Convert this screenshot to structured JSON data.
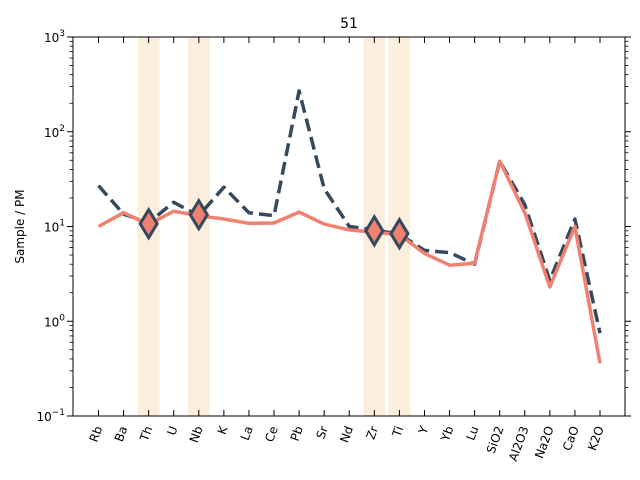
{
  "chart_data": {
    "type": "line",
    "title": "51",
    "xlabel": "",
    "ylabel": "Sample / PM",
    "yscale": "log",
    "ylim": [
      0.1,
      1000
    ],
    "yticks": [
      {
        "value": 0.1,
        "base": "10",
        "exp": "−1"
      },
      {
        "value": 1,
        "base": "10",
        "exp": "0"
      },
      {
        "value": 10,
        "base": "10",
        "exp": "1"
      },
      {
        "value": 100,
        "base": "10",
        "exp": "2"
      },
      {
        "value": 1000,
        "base": "10",
        "exp": "3"
      }
    ],
    "categories": [
      "Rb",
      "Ba",
      "Th",
      "U",
      "Nb",
      "K",
      "La",
      "Ce",
      "Pb",
      "Sr",
      "Nd",
      "Zr",
      "Ti",
      "Y",
      "Yb",
      "Lu",
      "SiO2",
      "Al2O3",
      "Na2O",
      "CaO",
      "K2O"
    ],
    "highlighted_categories": [
      "Th",
      "Nb",
      "Zr",
      "Ti"
    ],
    "highlight_color": "#fbeedd",
    "series": [
      {
        "style": "dashed",
        "color": "#34495e",
        "values": [
          27,
          13.5,
          11,
          18,
          13,
          26,
          14,
          13,
          270,
          25,
          10,
          9.2,
          8.3,
          5.6,
          5.3,
          4,
          49,
          17,
          2.7,
          12,
          0.75
        ]
      },
      {
        "style": "solid",
        "color": "#f08070",
        "values": [
          10,
          14,
          10.5,
          14.5,
          13,
          12,
          10.8,
          10.9,
          14.2,
          10.6,
          9.2,
          8.7,
          8.2,
          5.2,
          3.9,
          4.1,
          49,
          14,
          2.3,
          10,
          0.36
        ]
      }
    ],
    "markers": [
      {
        "category": "Th",
        "value": 10.7
      },
      {
        "category": "Nb",
        "value": 13.3
      },
      {
        "category": "Zr",
        "value": 9.0
      },
      {
        "category": "Ti",
        "value": 8.4
      }
    ],
    "marker_fill": "#f08070",
    "marker_edge": "#34495e"
  }
}
